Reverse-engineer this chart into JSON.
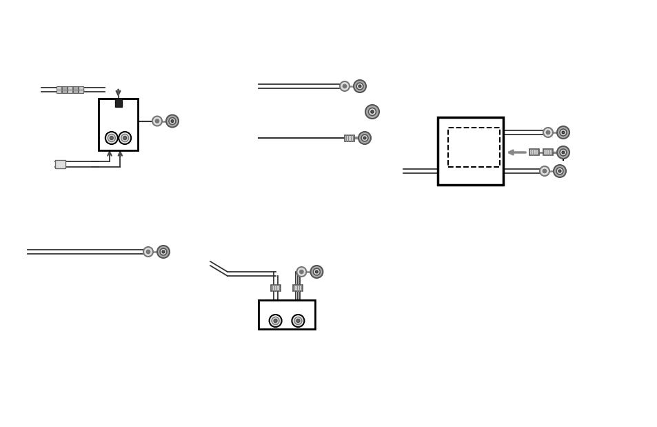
{
  "bg_color": "#ffffff",
  "lc": "#333333",
  "gc": "#888888",
  "dgc": "#555555",
  "lgc": "#bbbbbb",
  "blk": "#111111",
  "figsize": [
    9.54,
    6.19
  ],
  "dpi": 100
}
